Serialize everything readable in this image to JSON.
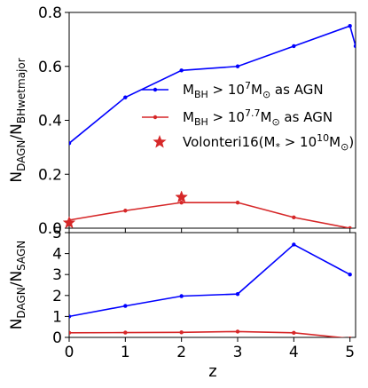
{
  "chart_data": [
    {
      "type": "line",
      "ylabel_main": "N",
      "ylabel_sub_num": "DAGN",
      "ylabel_sep": "/N",
      "ylabel_sub_den": "BHwetmajor",
      "ylim": [
        0.0,
        0.8
      ],
      "yticks": [
        "0.0",
        "0.2",
        "0.4",
        "0.6",
        "0.8"
      ],
      "xlim": [
        0,
        5
      ],
      "grid": false,
      "legend_position": "top-right",
      "series": [
        {
          "name": "M_BH > 10^7 M_sun as AGN",
          "color": "#0000ff",
          "marker": "dot",
          "x": [
            0,
            1,
            2,
            3,
            4,
            5,
            5.1
          ],
          "y": [
            0.315,
            0.485,
            0.585,
            0.6,
            0.675,
            0.75,
            0.675
          ]
        },
        {
          "name": "M_BH > 10^7.7 M_sun as AGN",
          "color": "#d62728",
          "marker": "dot",
          "x": [
            0,
            1,
            2,
            3,
            4,
            5
          ],
          "y": [
            0.03,
            0.065,
            0.095,
            0.095,
            0.04,
            0.0
          ]
        },
        {
          "name": "Volonteri16 (M* > 10^10 M_sun)",
          "color": "#d62728",
          "marker": "star",
          "x": [
            0,
            2
          ],
          "y": [
            0.02,
            0.115
          ]
        }
      ]
    },
    {
      "type": "line",
      "ylabel_main": "N",
      "ylabel_sub_num": "DAGN",
      "ylabel_sep": "/N",
      "ylabel_sub_den": "SAGN",
      "xlabel": "z",
      "ylim": [
        0,
        5
      ],
      "yticks": [
        "0",
        "1",
        "2",
        "3",
        "4",
        "5"
      ],
      "xlim": [
        0,
        5
      ],
      "xticks": [
        "0",
        "1",
        "2",
        "3",
        "4",
        "5"
      ],
      "grid": false,
      "series": [
        {
          "name": "M_BH > 10^7 M_sun as AGN",
          "color": "#0000ff",
          "x": [
            0,
            1,
            2,
            3,
            4,
            5
          ],
          "y": [
            1.0,
            1.5,
            1.97,
            2.07,
            4.43,
            3.0
          ]
        },
        {
          "name": "M_BH > 10^7.7 M_sun as AGN",
          "color": "#d62728",
          "x": [
            0,
            1,
            2,
            3,
            4,
            5
          ],
          "y": [
            0.22,
            0.23,
            0.24,
            0.28,
            0.22,
            -0.05
          ]
        }
      ]
    }
  ],
  "legend": [
    {
      "kind": "line",
      "color": "#0000ff",
      "pre": "M",
      "sub1": "BH",
      "mid": " > 10",
      "sup": "7",
      "post": "M",
      "sub2": "⊙",
      "tail": " as AGN"
    },
    {
      "kind": "line",
      "color": "#d62728",
      "pre": "M",
      "sub1": "BH",
      "mid": " > 10",
      "sup": "7.7",
      "post": "M",
      "sub2": "⊙",
      "tail": " as AGN"
    },
    {
      "kind": "star",
      "color": "#d62728",
      "text": "Volonteri16(M",
      "sub1": "*",
      "mid": " > 10",
      "sup": "10",
      "post": "M",
      "sub2": "⊙",
      "tail": ")"
    }
  ]
}
